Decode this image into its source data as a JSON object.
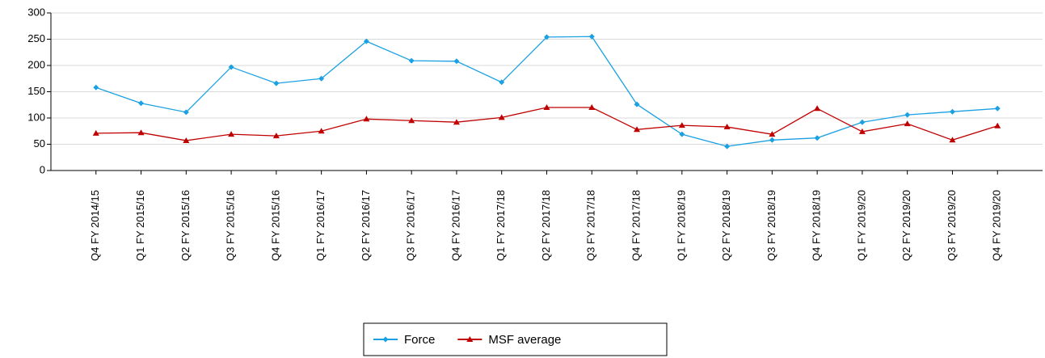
{
  "chart_data": {
    "type": "line",
    "categories": [
      "Q4 FY 2014/15",
      "Q1 FY 2015/16",
      "Q2 FY 2015/16",
      "Q3 FY 2015/16",
      "Q4 FY 2015/16",
      "Q1 FY 2016/17",
      "Q2 FY 2016/17",
      "Q3 FY 2016/17",
      "Q4 FY 2016/17",
      "Q1 FY 2017/18",
      "Q2 FY 2017/18",
      "Q3 FY 2017/18",
      "Q4 FY 2017/18",
      "Q1 FY 2018/19",
      "Q2 FY 2018/19",
      "Q3 FY 2018/19",
      "Q4 FY 2018/19",
      "Q1 FY 2019/20",
      "Q2 FY 2019/20",
      "Q3 FY 2019/20",
      "Q4 FY 2019/20"
    ],
    "series": [
      {
        "name": "Force",
        "color": "#1ba1e2",
        "values": [
          158,
          128,
          111,
          197,
          166,
          175,
          246,
          209,
          208,
          168,
          254,
          255,
          126,
          69,
          46,
          58,
          62,
          92,
          106,
          112,
          118
        ]
      },
      {
        "name": "MSF average",
        "color": "#c00000",
        "values": [
          71,
          72,
          57,
          69,
          66,
          75,
          98,
          95,
          92,
          101,
          120,
          120,
          78,
          86,
          83,
          69,
          118,
          74,
          89,
          58,
          85
        ]
      }
    ],
    "ylim": [
      0,
      300
    ],
    "yticks": [
      0,
      50,
      100,
      150,
      200,
      250,
      300
    ],
    "grid": true,
    "legend": "bottom"
  }
}
